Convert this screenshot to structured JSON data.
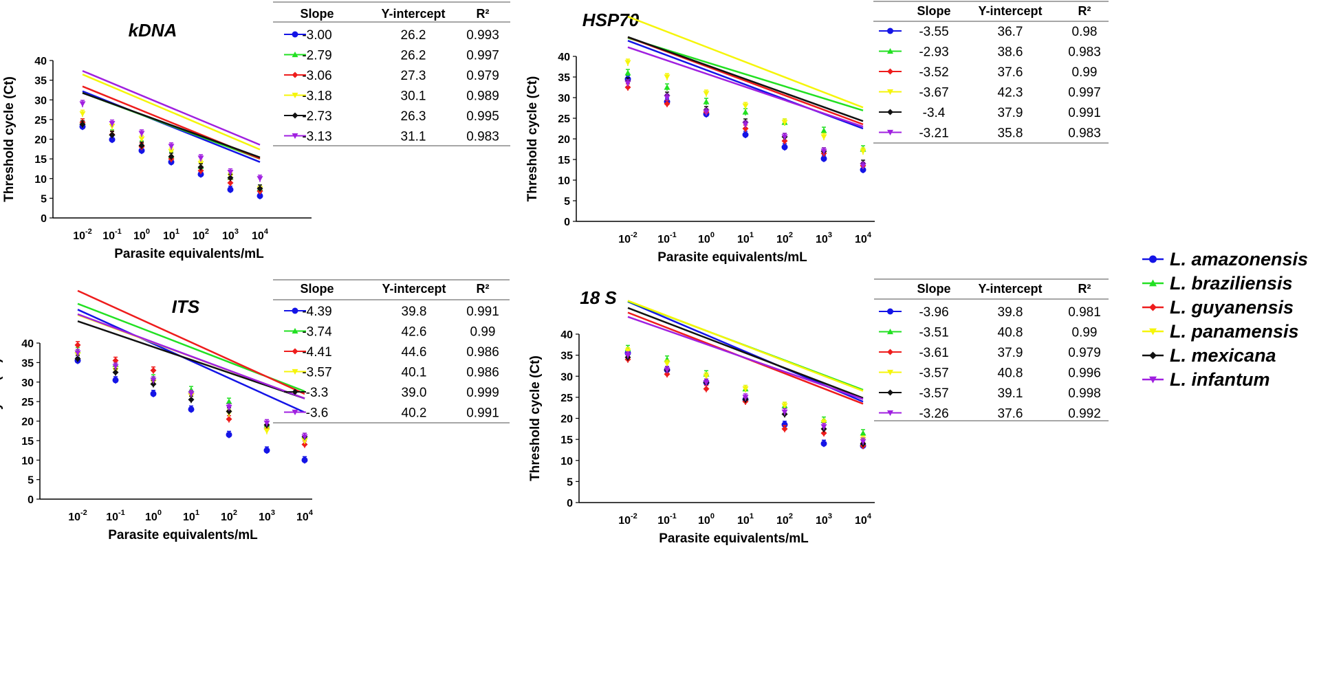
{
  "chart_data": [
    {
      "type": "line",
      "title": "kDNA",
      "xlabel": "Parasite equivalents/mL",
      "ylabel": "Threshold cycle (Ct)",
      "ylim": [
        0,
        40
      ],
      "yticks": [
        0,
        5,
        10,
        15,
        20,
        25,
        30,
        35,
        40
      ],
      "categories": [
        "10-2",
        "10-1",
        "100",
        "101",
        "102",
        "103",
        "104"
      ],
      "category_exponents": [
        "-2",
        "-1",
        "0",
        "1",
        "2",
        "3",
        "4"
      ],
      "series": [
        {
          "name": "L. amazonensis",
          "values": [
            23.2,
            19.9,
            17.1,
            14.2,
            11.1,
            7.2,
            5.6
          ]
        },
        {
          "name": "L. braziliensis",
          "values": [
            24.3,
            21.5,
            18.7,
            15.9,
            13.1,
            10.3,
            7.5
          ]
        },
        {
          "name": "L. guyanensis",
          "values": [
            24.3,
            21.2,
            18.1,
            15.0,
            12.0,
            8.9,
            6.8
          ]
        },
        {
          "name": "L. panamensis",
          "values": [
            26.5,
            23.3,
            20.1,
            16.9,
            13.8,
            10.6,
            7.4
          ]
        },
        {
          "name": "L. mexicana",
          "values": [
            23.8,
            21.1,
            18.4,
            15.6,
            12.9,
            10.2,
            7.5
          ]
        },
        {
          "name": "L. infantum",
          "values": [
            29.0,
            24.0,
            21.5,
            18.2,
            15.2,
            11.6,
            10.0
          ]
        }
      ],
      "table": {
        "headers": [
          "Slope",
          "Y-intercept",
          "R²"
        ],
        "rows": [
          [
            "-3.00",
            "26.2",
            "0.993"
          ],
          [
            "-2.79",
            "26.2",
            "0.997"
          ],
          [
            "-3.06",
            "27.3",
            "0.979"
          ],
          [
            "-3.18",
            "30.1",
            "0.989"
          ],
          [
            "-2.73",
            "26.3",
            "0.995"
          ],
          [
            "-3.13",
            "31.1",
            "0.983"
          ]
        ]
      }
    },
    {
      "type": "line",
      "title": "HSP70",
      "xlabel": "Parasite equivalents/mL",
      "ylabel": "Threshold cycle (Ct)",
      "ylim": [
        0,
        40
      ],
      "yticks": [
        0,
        5,
        10,
        15,
        20,
        25,
        30,
        35,
        40
      ],
      "categories": [
        "10-2",
        "10-1",
        "100",
        "101",
        "102",
        "103",
        "104"
      ],
      "category_exponents": [
        "-2",
        "-1",
        "0",
        "1",
        "2",
        "3",
        "4"
      ],
      "series": [
        {
          "name": "L. amazonensis",
          "values": [
            34.5,
            29.0,
            26.0,
            21.0,
            18.0,
            15.2,
            12.5
          ]
        },
        {
          "name": "L. braziliensis",
          "values": [
            36.0,
            32.5,
            29.0,
            26.5,
            24.0,
            22.0,
            17.5
          ]
        },
        {
          "name": "L. guyanensis",
          "values": [
            32.5,
            28.5,
            26.5,
            22.5,
            19.5,
            16.5,
            13.5
          ]
        },
        {
          "name": "L. panamensis",
          "values": [
            38.5,
            35.0,
            31.0,
            28.0,
            24.0,
            20.5,
            17.0
          ]
        },
        {
          "name": "L. mexicana",
          "values": [
            34.0,
            30.5,
            27.0,
            24.0,
            20.5,
            17.0,
            14.0
          ]
        },
        {
          "name": "L. infantum",
          "values": [
            33.5,
            30.0,
            26.5,
            23.5,
            20.5,
            17.0,
            13.5
          ]
        }
      ],
      "table": {
        "headers": [
          "Slope",
          "Y-intercept",
          "R²"
        ],
        "rows": [
          [
            "-3.55",
            "36.7",
            "0.98"
          ],
          [
            "-2.93",
            "38.6",
            "0.983"
          ],
          [
            "-3.52",
            "37.6",
            "0.99"
          ],
          [
            "-3.67",
            "42.3",
            "0.997"
          ],
          [
            "-3.4",
            "37.9",
            "0.991"
          ],
          [
            "-3.21",
            "35.8",
            "0.983"
          ]
        ]
      }
    },
    {
      "type": "line",
      "title": "ITS",
      "xlabel": "Parasite equivalents/mL",
      "ylabel": "Threshold cycle (Ct)",
      "ylim": [
        0,
        40
      ],
      "yticks": [
        0,
        5,
        10,
        15,
        20,
        25,
        30,
        35,
        40
      ],
      "categories": [
        "10-2",
        "10-1",
        "100",
        "101",
        "102",
        "103",
        "104"
      ],
      "category_exponents": [
        "-2",
        "-1",
        "0",
        "1",
        "2",
        "3",
        "4"
      ],
      "series": [
        {
          "name": "L. amazonensis",
          "values": [
            35.5,
            30.5,
            27.0,
            23.0,
            16.5,
            12.5,
            10.0
          ]
        },
        {
          "name": "L. braziliensis",
          "values": [
            38.0,
            34.5,
            31.0,
            28.0,
            25.0,
            19.0,
            16.0
          ]
        },
        {
          "name": "L. guyanensis",
          "values": [
            39.5,
            35.5,
            33.0,
            27.0,
            20.5,
            18.0,
            14.0
          ]
        },
        {
          "name": "L. panamensis",
          "values": [
            37.0,
            33.0,
            30.0,
            26.5,
            22.0,
            17.5,
            15.0
          ]
        },
        {
          "name": "L. mexicana",
          "values": [
            36.0,
            32.5,
            29.5,
            25.5,
            22.5,
            19.0,
            16.0
          ]
        },
        {
          "name": "L. infantum",
          "values": [
            37.5,
            34.0,
            30.5,
            27.0,
            23.5,
            19.5,
            16.0
          ]
        }
      ],
      "table": {
        "headers": [
          "Slope",
          "Y-intercept",
          "R²"
        ],
        "rows": [
          [
            "-4.39",
            "39.8",
            "0.991"
          ],
          [
            "-3.74",
            "42.6",
            "0.99"
          ],
          [
            "-4.41",
            "44.6",
            "0.986"
          ],
          [
            "-3.57",
            "40.1",
            "0.986"
          ],
          [
            "-3.3",
            "39.0",
            "0.999"
          ],
          [
            "-3.6",
            "40.2",
            "0.991"
          ]
        ]
      }
    },
    {
      "type": "line",
      "title": "18 S",
      "xlabel": "Parasite equivalents/mL",
      "ylabel": "Threshold cycle (Ct)",
      "ylim": [
        0,
        40
      ],
      "yticks": [
        0,
        5,
        10,
        15,
        20,
        25,
        30,
        35,
        40
      ],
      "categories": [
        "10-2",
        "10-1",
        "100",
        "101",
        "102",
        "103",
        "104"
      ],
      "category_exponents": [
        "-2",
        "-1",
        "0",
        "1",
        "2",
        "3",
        "4"
      ],
      "series": [
        {
          "name": "L. amazonensis",
          "values": [
            35.5,
            31.5,
            28.5,
            24.5,
            18.5,
            14.0,
            13.5
          ]
        },
        {
          "name": "L. braziliensis",
          "values": [
            36.5,
            34.0,
            30.5,
            27.0,
            23.0,
            19.5,
            16.5
          ]
        },
        {
          "name": "L. guyanensis",
          "values": [
            34.0,
            30.5,
            27.0,
            24.0,
            17.5,
            16.5,
            13.5
          ]
        },
        {
          "name": "L. panamensis",
          "values": [
            36.0,
            33.0,
            30.0,
            27.0,
            23.0,
            19.0,
            15.0
          ]
        },
        {
          "name": "L. mexicana",
          "values": [
            34.5,
            31.5,
            28.5,
            24.5,
            21.0,
            17.5,
            14.0
          ]
        },
        {
          "name": "L. infantum",
          "values": [
            35.0,
            31.5,
            28.5,
            25.0,
            21.5,
            18.0,
            14.5
          ]
        }
      ],
      "table": {
        "headers": [
          "Slope",
          "Y-intercept",
          "R²"
        ],
        "rows": [
          [
            "-3.96",
            "39.8",
            "0.981"
          ],
          [
            "-3.51",
            "40.8",
            "0.99"
          ],
          [
            "-3.61",
            "37.9",
            "0.979"
          ],
          [
            "-3.57",
            "40.8",
            "0.996"
          ],
          [
            "-3.57",
            "39.1",
            "0.998"
          ],
          [
            "-3.26",
            "37.6",
            "0.992"
          ]
        ]
      }
    }
  ],
  "legend": {
    "position": "right",
    "entries": [
      {
        "name": "L. amazonensis",
        "color": "#1414e6",
        "marker": "circle"
      },
      {
        "name": "L. braziliensis",
        "color": "#22e022",
        "marker": "triangle"
      },
      {
        "name": "L. guyanensis",
        "color": "#ee1c1c",
        "marker": "diamond"
      },
      {
        "name": "L. panamensis",
        "color": "#f5f50a",
        "marker": "triangle-down"
      },
      {
        "name": "L. mexicana",
        "color": "#111111",
        "marker": "diamond"
      },
      {
        "name": "L. infantum",
        "color": "#a020e0",
        "marker": "triangle-down"
      }
    ]
  }
}
